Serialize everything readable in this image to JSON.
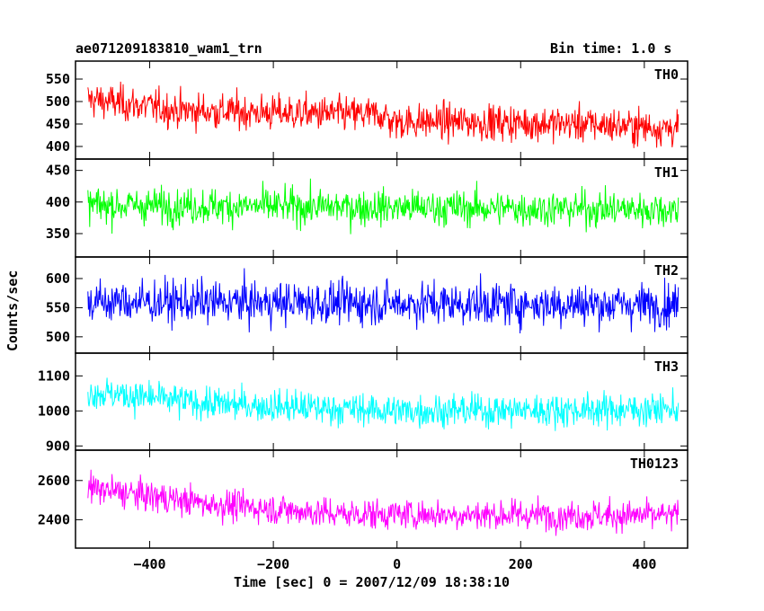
{
  "header": {
    "title": "ae071209183810_wam1_trn",
    "bin_time": "Bin time: 1.0 s"
  },
  "axes": {
    "xlabel": "Time [sec] 0 = 2007/12/09 18:38:10",
    "ylabel": "Counts/sec"
  },
  "chart_data": {
    "type": "line",
    "title": "ae071209183810_wam1_trn",
    "subtitle": "Bin time: 1.0 s",
    "xlabel": "Time [sec] 0 = 2007/12/09 18:38:10",
    "ylabel": "Counts/sec",
    "xlim": [
      -520,
      470
    ],
    "x_ticks": [
      -400,
      -200,
      0,
      200,
      400
    ],
    "x_range_data": [
      -500,
      455
    ],
    "bin_time_s": 1.0,
    "grid": false,
    "panels": [
      {
        "name": "TH0",
        "color": "#ff0000",
        "ylim": [
          372,
          590
        ],
        "y_ticks": [
          400,
          450,
          500,
          550
        ],
        "level_points": [
          [
            -500,
            505
          ],
          [
            -350,
            480
          ],
          [
            -200,
            475
          ],
          [
            -20,
            470
          ],
          [
            -10,
            455
          ],
          [
            100,
            455
          ],
          [
            300,
            450
          ],
          [
            455,
            440
          ]
        ],
        "noise_sd": 28,
        "approx_range": [
          375,
          590
        ]
      },
      {
        "name": "TH1",
        "color": "#00ff00",
        "ylim": [
          313,
          468
        ],
        "y_ticks": [
          350,
          400,
          450
        ],
        "level_points": [
          [
            -500,
            395
          ],
          [
            455,
            388
          ]
        ],
        "noise_sd": 20,
        "approx_range": [
          315,
          468
        ]
      },
      {
        "name": "TH2",
        "color": "#0000ff",
        "ylim": [
          472,
          637
        ],
        "y_ticks": [
          500,
          550,
          600
        ],
        "level_points": [
          [
            -500,
            560
          ],
          [
            455,
            555
          ]
        ],
        "noise_sd": 26,
        "approx_range": [
          472,
          637
        ]
      },
      {
        "name": "TH3",
        "color": "#00ffff",
        "ylim": [
          888,
          1165
        ],
        "y_ticks": [
          900,
          1000,
          1100
        ],
        "level_points": [
          [
            -500,
            1055
          ],
          [
            -300,
            1020
          ],
          [
            0,
            1000
          ],
          [
            455,
            1005
          ]
        ],
        "noise_sd": 33,
        "approx_range": [
          890,
          1165
        ]
      },
      {
        "name": "TH0123",
        "color": "#ff00ff",
        "ylim": [
          2255,
          2755
        ],
        "y_ticks": [
          2400,
          2600
        ],
        "level_points": [
          [
            -500,
            2560
          ],
          [
            -300,
            2480
          ],
          [
            -100,
            2430
          ],
          [
            455,
            2420
          ]
        ],
        "noise_sd": 55,
        "approx_range": [
          2255,
          2740
        ]
      }
    ]
  }
}
